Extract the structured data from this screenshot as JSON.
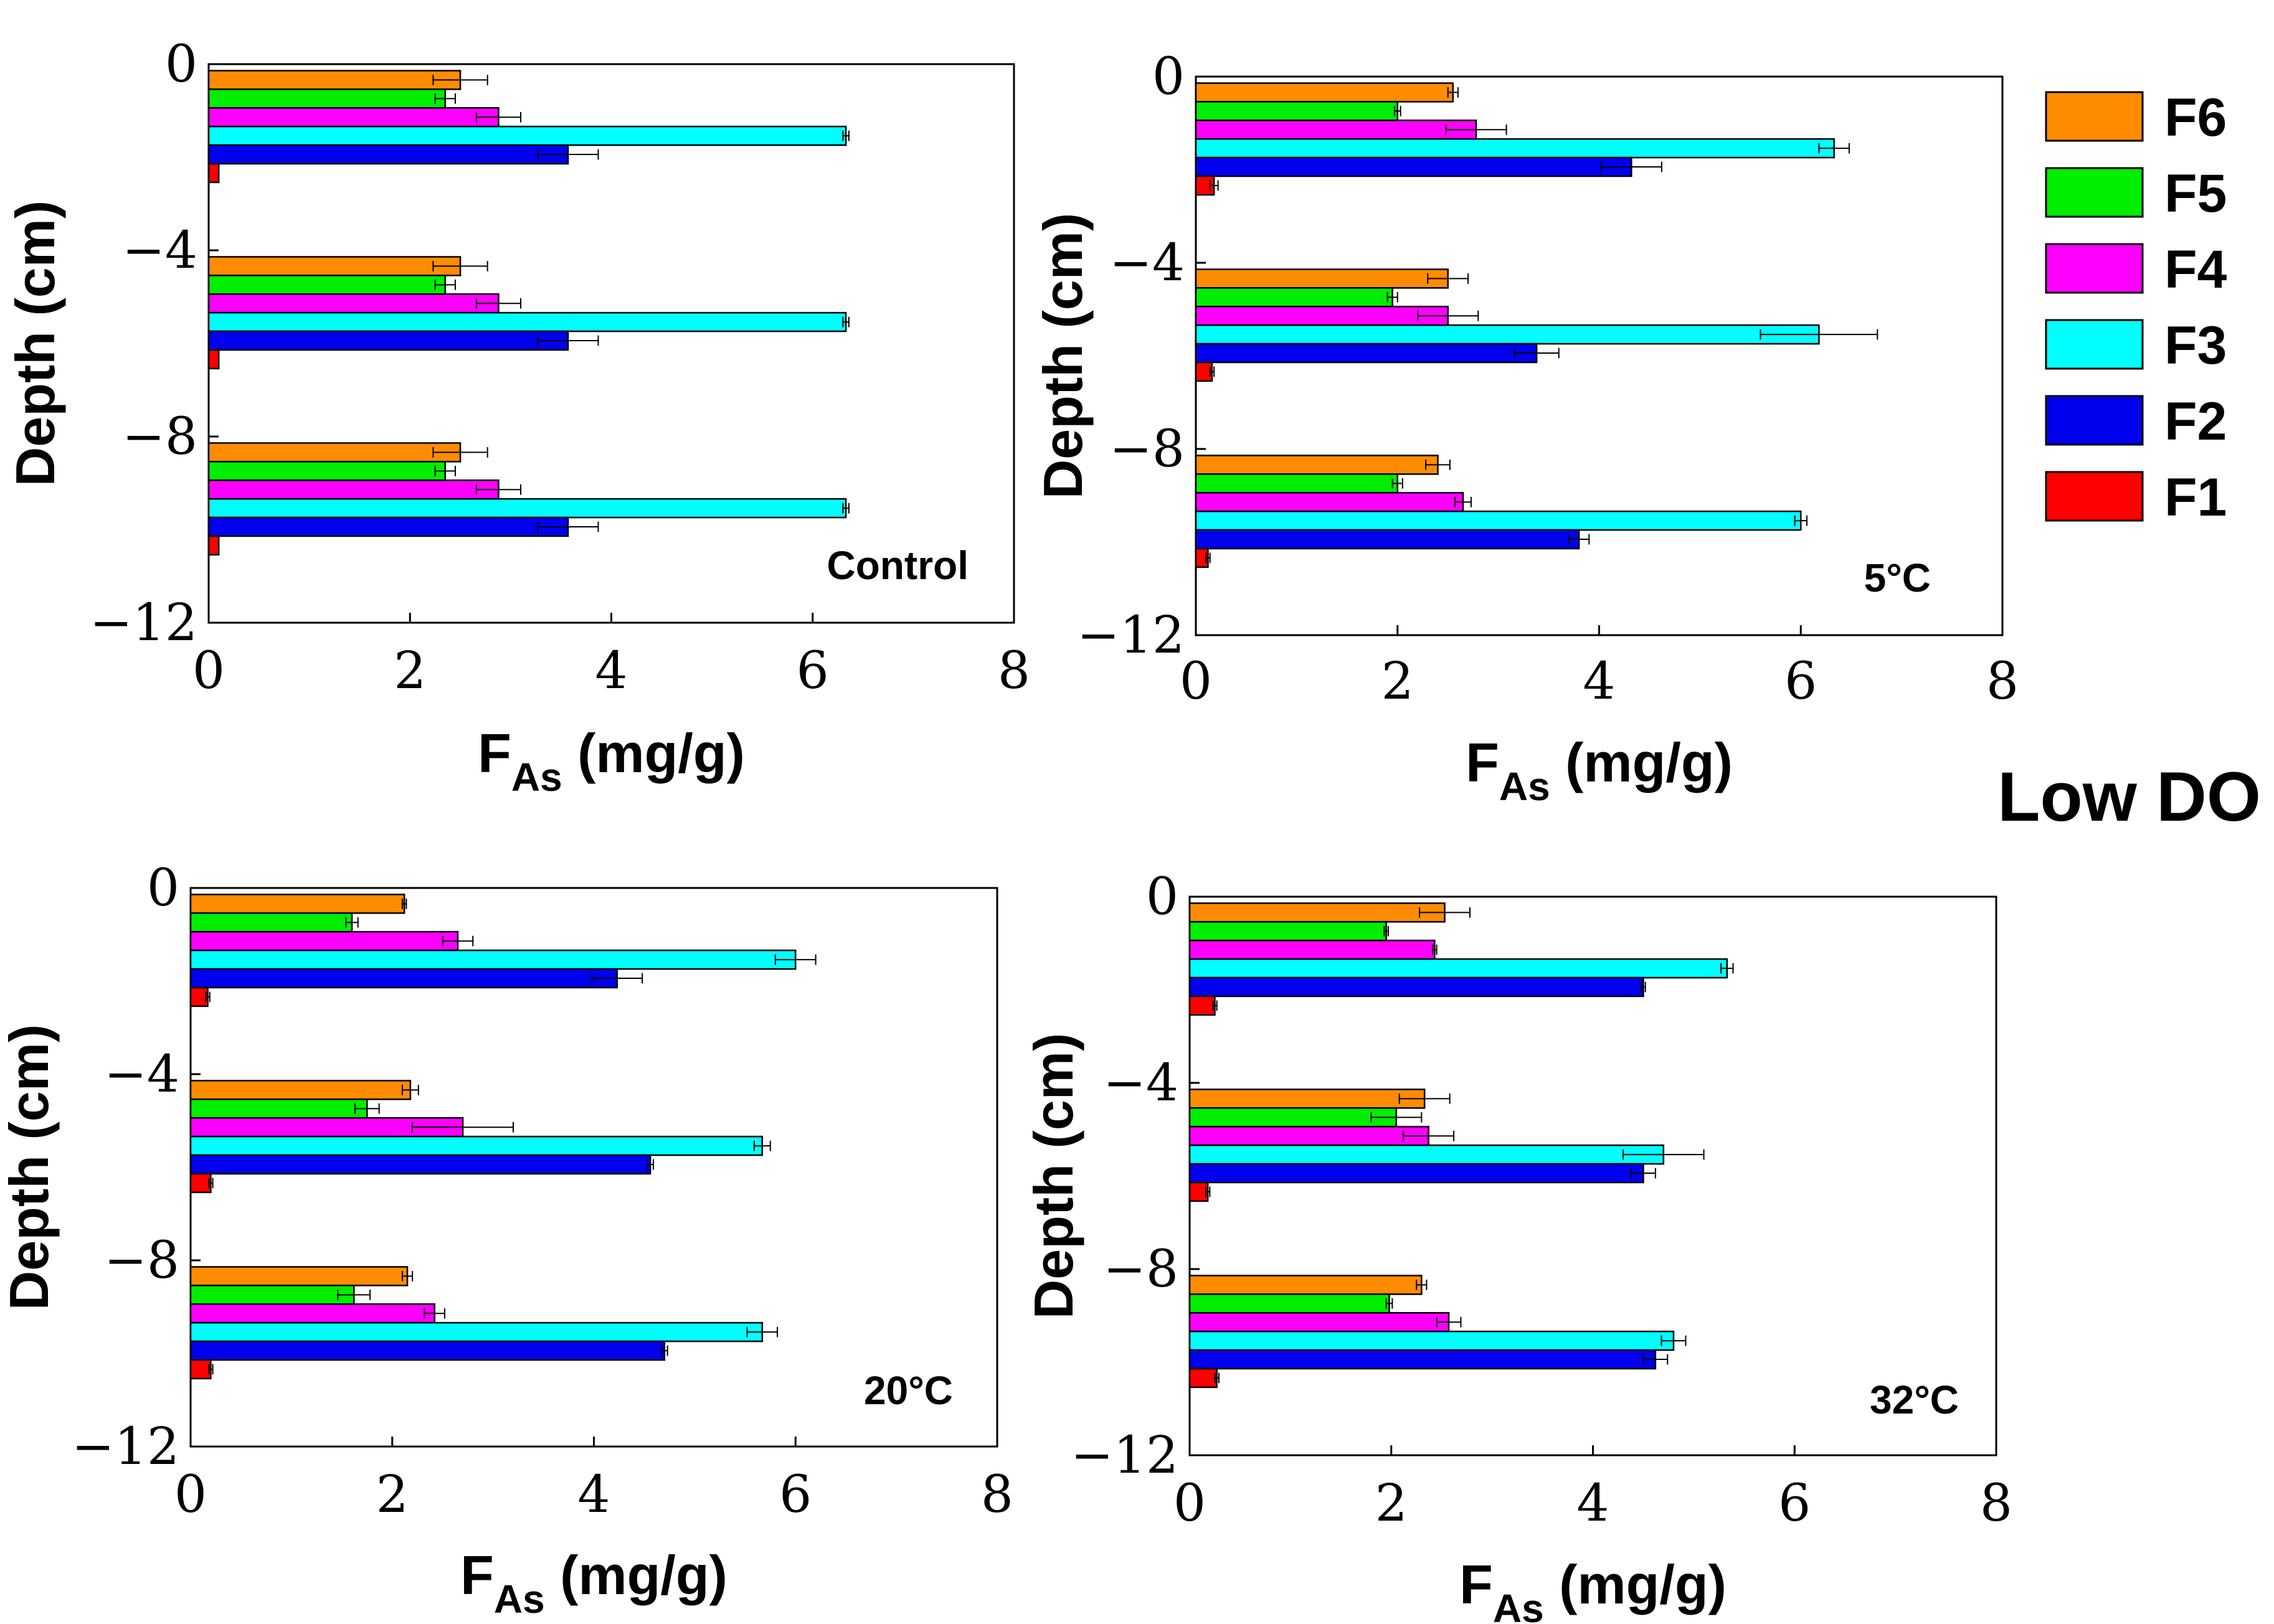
{
  "figure_title": "Low DO",
  "colors": {
    "F6": "#ff8c00",
    "F5": "#00ee00",
    "F4": "#ff00ff",
    "F3": "#00ffff",
    "F2": "#0000ee",
    "F1": "#ff0000"
  },
  "legend": [
    "F6",
    "F5",
    "F4",
    "F3",
    "F2",
    "F1"
  ],
  "chart_data": [
    {
      "type": "bar",
      "orientation": "horizontal",
      "title": "Control",
      "xlabel_main": "F",
      "xlabel_sub": "As",
      "xlabel_unit": " (mg/g)",
      "ylabel": "Depth (cm)",
      "xlim": [
        0,
        8
      ],
      "ylim": [
        -12,
        0
      ],
      "x_ticks": [
        "0",
        "2",
        "4",
        "6",
        "8"
      ],
      "y_ticks": [
        "0",
        "−4",
        "−8",
        "−12"
      ],
      "categories": [
        "0–4",
        "4–8",
        "8–12"
      ],
      "series": [
        {
          "name": "F6",
          "values": [
            2.5,
            2.5,
            2.5
          ],
          "errors": [
            0.27,
            0.27,
            0.27
          ]
        },
        {
          "name": "F5",
          "values": [
            2.35,
            2.35,
            2.35
          ],
          "errors": [
            0.1,
            0.1,
            0.1
          ]
        },
        {
          "name": "F4",
          "values": [
            2.88,
            2.88,
            2.88
          ],
          "errors": [
            0.22,
            0.22,
            0.22
          ]
        },
        {
          "name": "F3",
          "values": [
            6.33,
            6.33,
            6.33
          ],
          "errors": [
            0.03,
            0.03,
            0.03
          ]
        },
        {
          "name": "F2",
          "values": [
            3.57,
            3.57,
            3.57
          ],
          "errors": [
            0.3,
            0.3,
            0.3
          ]
        },
        {
          "name": "F1",
          "values": [
            0.1,
            0.1,
            0.1
          ],
          "errors": [
            0,
            0,
            0
          ]
        }
      ]
    },
    {
      "type": "bar",
      "orientation": "horizontal",
      "title": "5°C",
      "xlabel_main": "F",
      "xlabel_sub": "As",
      "xlabel_unit": " (mg/g)",
      "ylabel": "Depth (cm)",
      "xlim": [
        0,
        8
      ],
      "ylim": [
        -12,
        0
      ],
      "x_ticks": [
        "0",
        "2",
        "4",
        "6",
        "8"
      ],
      "y_ticks": [
        "0",
        "−4",
        "−8",
        "−12"
      ],
      "categories": [
        "0–4",
        "4–8",
        "8–12"
      ],
      "series": [
        {
          "name": "F6",
          "values": [
            2.55,
            2.5,
            2.4
          ],
          "errors": [
            0.05,
            0.2,
            0.12
          ]
        },
        {
          "name": "F5",
          "values": [
            2.0,
            1.95,
            2.0
          ],
          "errors": [
            0.03,
            0.05,
            0.05
          ]
        },
        {
          "name": "F4",
          "values": [
            2.78,
            2.5,
            2.65
          ],
          "errors": [
            0.3,
            0.3,
            0.08
          ]
        },
        {
          "name": "F3",
          "values": [
            6.33,
            6.18,
            6.0
          ],
          "errors": [
            0.15,
            0.58,
            0.06
          ]
        },
        {
          "name": "F2",
          "values": [
            4.32,
            3.38,
            3.8
          ],
          "errors": [
            0.3,
            0.22,
            0.1
          ]
        },
        {
          "name": "F1",
          "values": [
            0.18,
            0.16,
            0.12
          ],
          "errors": [
            0.04,
            0.02,
            0.02
          ]
        }
      ]
    },
    {
      "type": "bar",
      "orientation": "horizontal",
      "title": "20°C",
      "xlabel_main": "F",
      "xlabel_sub": "As",
      "xlabel_unit": " (mg/g)",
      "ylabel": "Depth (cm)",
      "xlim": [
        0,
        8
      ],
      "ylim": [
        -12,
        0
      ],
      "x_ticks": [
        "0",
        "2",
        "4",
        "6",
        "8"
      ],
      "y_ticks": [
        "0",
        "−4",
        "−8",
        "−12"
      ],
      "categories": [
        "0–4",
        "4–8",
        "8–12"
      ],
      "series": [
        {
          "name": "F6",
          "values": [
            2.12,
            2.18,
            2.15
          ],
          "errors": [
            0.02,
            0.08,
            0.05
          ]
        },
        {
          "name": "F5",
          "values": [
            1.6,
            1.75,
            1.62
          ],
          "errors": [
            0.06,
            0.12,
            0.16
          ]
        },
        {
          "name": "F4",
          "values": [
            2.65,
            2.7,
            2.42
          ],
          "errors": [
            0.15,
            0.5,
            0.1
          ]
        },
        {
          "name": "F3",
          "values": [
            6.0,
            5.67,
            5.67
          ],
          "errors": [
            0.2,
            0.08,
            0.15
          ]
        },
        {
          "name": "F2",
          "values": [
            4.23,
            4.56,
            4.7
          ],
          "errors": [
            0.25,
            0.03,
            0.03
          ]
        },
        {
          "name": "F1",
          "values": [
            0.17,
            0.2,
            0.2
          ],
          "errors": [
            0.02,
            0.02,
            0.02
          ]
        }
      ]
    },
    {
      "type": "bar",
      "orientation": "horizontal",
      "title": "32°C",
      "xlabel_main": "F",
      "xlabel_sub": "As",
      "xlabel_unit": " (mg/g)",
      "ylabel": "Depth (cm)",
      "xlim": [
        0,
        8
      ],
      "ylim": [
        -12,
        0
      ],
      "x_ticks": [
        "0",
        "2",
        "4",
        "6",
        "8"
      ],
      "y_ticks": [
        "0",
        "−4",
        "−8",
        "−12"
      ],
      "categories": [
        "0–4",
        "4–8",
        "8–12"
      ],
      "series": [
        {
          "name": "F6",
          "values": [
            2.53,
            2.33,
            2.3
          ],
          "errors": [
            0.25,
            0.25,
            0.05
          ]
        },
        {
          "name": "F5",
          "values": [
            1.95,
            2.05,
            1.98
          ],
          "errors": [
            0.02,
            0.25,
            0.03
          ]
        },
        {
          "name": "F4",
          "values": [
            2.43,
            2.37,
            2.57
          ],
          "errors": [
            0.02,
            0.25,
            0.12
          ]
        },
        {
          "name": "F3",
          "values": [
            5.33,
            4.7,
            4.8
          ],
          "errors": [
            0.06,
            0.4,
            0.12
          ]
        },
        {
          "name": "F2",
          "values": [
            4.5,
            4.5,
            4.62
          ],
          "errors": [
            0.02,
            0.12,
            0.12
          ]
        },
        {
          "name": "F1",
          "values": [
            0.25,
            0.18,
            0.27
          ],
          "errors": [
            0.02,
            0.02,
            0.02
          ]
        }
      ]
    }
  ]
}
